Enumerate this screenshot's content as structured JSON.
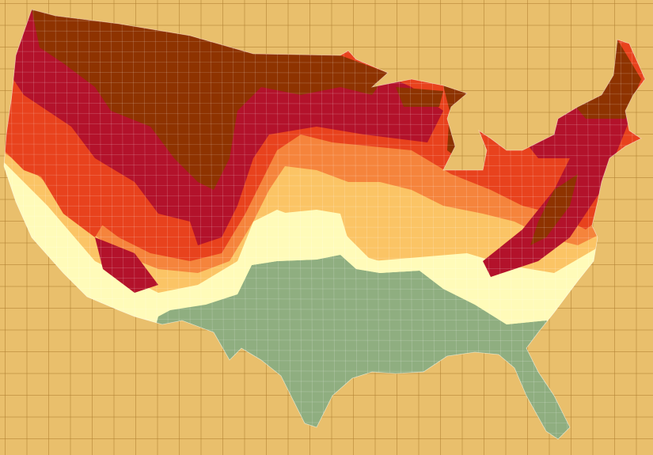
{
  "map": {
    "background_color": "#e9bf6c",
    "grid_color": "#b08030",
    "region_colors": {
      "peak_dark_brown": "#8e3300",
      "crimson": "#b3122b",
      "red_orange": "#e8421d",
      "orange": "#f5843c",
      "light_orange": "#fbc465",
      "pale_yellow": "#fffbb9",
      "green": "#8fae80"
    },
    "county_border_color": "#ffffff"
  }
}
